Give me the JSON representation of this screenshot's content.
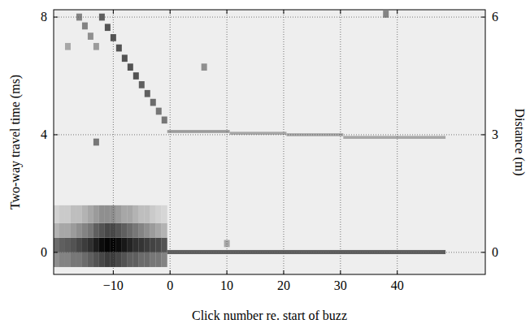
{
  "chart_data": {
    "type": "heatmap",
    "xlabel": "Click number re. start of buzz",
    "ylabel": "Two-way travel time (ms)",
    "y2label": "Distance (m)",
    "xlim": [
      -20.5,
      55.5
    ],
    "ylim": [
      -0.75,
      8.25
    ],
    "y2lim": [
      -0.5625,
      6.1875
    ],
    "xticks": [
      {
        "value": -10,
        "label": "−10"
      },
      0,
      10,
      20,
      30,
      40
    ],
    "yticks": [
      0,
      4,
      8
    ],
    "y2ticks": [
      0,
      3,
      6
    ],
    "grid": true,
    "value_range": [
      0,
      1
    ],
    "cells": [
      [
        -20.5,
        -19.5,
        -0.5,
        0,
        0.4
      ],
      [
        -20.5,
        -19.5,
        0,
        0.5,
        0.55
      ],
      [
        -20.5,
        -19.5,
        0.5,
        1,
        0.25
      ],
      [
        -20.5,
        -19.5,
        1,
        1.6,
        0.12
      ],
      [
        -19.5,
        -18.5,
        -0.5,
        0,
        0.45
      ],
      [
        -19.5,
        -18.5,
        0,
        0.5,
        0.6
      ],
      [
        -19.5,
        -18.5,
        0.5,
        1,
        0.3
      ],
      [
        -19.5,
        -18.5,
        1,
        1.6,
        0.15
      ],
      [
        -18.5,
        -17.5,
        -0.5,
        0,
        0.45
      ],
      [
        -18.5,
        -17.5,
        0,
        0.5,
        0.62
      ],
      [
        -18.5,
        -17.5,
        0.5,
        1,
        0.3
      ],
      [
        -18.5,
        -17.5,
        1,
        1.6,
        0.15
      ],
      [
        -17.5,
        -16.5,
        -0.5,
        0,
        0.5
      ],
      [
        -17.5,
        -16.5,
        0,
        0.5,
        0.65
      ],
      [
        -17.5,
        -16.5,
        0.5,
        1,
        0.35
      ],
      [
        -17.5,
        -16.5,
        1,
        1.6,
        0.2
      ],
      [
        -16.5,
        -15.5,
        -0.5,
        0,
        0.5
      ],
      [
        -16.5,
        -15.5,
        0,
        0.5,
        0.7
      ],
      [
        -16.5,
        -15.5,
        0.5,
        1,
        0.4
      ],
      [
        -16.5,
        -15.5,
        1,
        1.6,
        0.2
      ],
      [
        -15.5,
        -14.5,
        -0.5,
        0,
        0.55
      ],
      [
        -15.5,
        -14.5,
        0,
        0.5,
        0.75
      ],
      [
        -15.5,
        -14.5,
        0.5,
        1,
        0.45
      ],
      [
        -15.5,
        -14.5,
        1,
        1.6,
        0.25
      ],
      [
        -14.5,
        -13.5,
        -0.5,
        0,
        0.6
      ],
      [
        -14.5,
        -13.5,
        0,
        0.5,
        0.8
      ],
      [
        -14.5,
        -13.5,
        0.5,
        1,
        0.5
      ],
      [
        -14.5,
        -13.5,
        1,
        1.6,
        0.3
      ],
      [
        -13.5,
        -12.5,
        -0.5,
        0,
        0.65
      ],
      [
        -13.5,
        -12.5,
        0,
        0.5,
        0.88
      ],
      [
        -13.5,
        -12.5,
        0.5,
        1,
        0.6
      ],
      [
        -13.5,
        -12.5,
        1,
        1.6,
        0.35
      ],
      [
        -12.5,
        -11.5,
        -0.5,
        0,
        0.7
      ],
      [
        -12.5,
        -11.5,
        0,
        0.5,
        0.95
      ],
      [
        -12.5,
        -11.5,
        0.5,
        1,
        0.65
      ],
      [
        -12.5,
        -11.5,
        1,
        1.6,
        0.4
      ],
      [
        -11.5,
        -10.5,
        -0.5,
        0,
        0.75
      ],
      [
        -11.5,
        -10.5,
        0,
        0.5,
        0.98
      ],
      [
        -11.5,
        -10.5,
        0.5,
        1,
        0.7
      ],
      [
        -11.5,
        -10.5,
        1,
        1.6,
        0.4
      ],
      [
        -10.5,
        -9.5,
        -0.5,
        0,
        0.75
      ],
      [
        -10.5,
        -9.5,
        0,
        0.5,
        0.98
      ],
      [
        -10.5,
        -9.5,
        0.5,
        1,
        0.7
      ],
      [
        -10.5,
        -9.5,
        1,
        1.6,
        0.4
      ],
      [
        -9.5,
        -8.5,
        -0.5,
        0,
        0.7
      ],
      [
        -9.5,
        -8.5,
        0,
        0.5,
        0.95
      ],
      [
        -9.5,
        -8.5,
        0.5,
        1,
        0.65
      ],
      [
        -9.5,
        -8.5,
        1,
        1.6,
        0.35
      ],
      [
        -8.5,
        -7.5,
        -0.5,
        0,
        0.65
      ],
      [
        -8.5,
        -7.5,
        0,
        0.5,
        0.9
      ],
      [
        -8.5,
        -7.5,
        0.5,
        1,
        0.6
      ],
      [
        -8.5,
        -7.5,
        1,
        1.6,
        0.3
      ],
      [
        -7.5,
        -6.5,
        -0.5,
        0,
        0.6
      ],
      [
        -7.5,
        -6.5,
        0,
        0.5,
        0.85
      ],
      [
        -7.5,
        -6.5,
        0.5,
        1,
        0.55
      ],
      [
        -7.5,
        -6.5,
        1,
        1.6,
        0.3
      ],
      [
        -6.5,
        -5.5,
        -0.5,
        0,
        0.6
      ],
      [
        -6.5,
        -5.5,
        0,
        0.5,
        0.8
      ],
      [
        -6.5,
        -5.5,
        0.5,
        1,
        0.5
      ],
      [
        -6.5,
        -5.5,
        1,
        1.6,
        0.25
      ],
      [
        -5.5,
        -4.5,
        -0.5,
        0,
        0.55
      ],
      [
        -5.5,
        -4.5,
        0,
        0.5,
        0.78
      ],
      [
        -5.5,
        -4.5,
        0.5,
        1,
        0.45
      ],
      [
        -5.5,
        -4.5,
        1,
        1.6,
        0.2
      ],
      [
        -4.5,
        -3.5,
        -0.5,
        0,
        0.55
      ],
      [
        -4.5,
        -3.5,
        0,
        0.5,
        0.75
      ],
      [
        -4.5,
        -3.5,
        0.5,
        1,
        0.4
      ],
      [
        -4.5,
        -3.5,
        1,
        1.6,
        0.2
      ],
      [
        -3.5,
        -2.5,
        -0.5,
        0,
        0.5
      ],
      [
        -3.5,
        -2.5,
        0,
        0.5,
        0.72
      ],
      [
        -3.5,
        -2.5,
        0.5,
        1,
        0.35
      ],
      [
        -3.5,
        -2.5,
        1,
        1.6,
        0.15
      ],
      [
        -2.5,
        -1.5,
        -0.5,
        0,
        0.5
      ],
      [
        -2.5,
        -1.5,
        0,
        0.5,
        0.7
      ],
      [
        -2.5,
        -1.5,
        0.5,
        1,
        0.3
      ],
      [
        -2.5,
        -1.5,
        1,
        1.6,
        0.12
      ],
      [
        -1.5,
        -0.5,
        -0.5,
        0,
        0.45
      ],
      [
        -1.5,
        -0.5,
        0,
        0.5,
        0.65
      ],
      [
        -1.5,
        -0.5,
        0.5,
        1,
        0.25
      ],
      [
        -1.5,
        -0.5,
        1,
        1.6,
        0.1
      ],
      [
        -12.5,
        -11.5,
        7.88,
        8.12,
        0.6
      ],
      [
        -11.5,
        -10.5,
        7.53,
        7.77,
        0.65
      ],
      [
        -10.5,
        -9.5,
        7.18,
        7.42,
        0.65
      ],
      [
        -9.5,
        -8.5,
        6.83,
        7.07,
        0.65
      ],
      [
        -8.5,
        -7.5,
        6.48,
        6.72,
        0.65
      ],
      [
        -7.5,
        -6.5,
        6.18,
        6.42,
        0.65
      ],
      [
        -6.5,
        -5.5,
        5.88,
        6.12,
        0.65
      ],
      [
        -5.5,
        -4.5,
        5.58,
        5.82,
        0.6
      ],
      [
        -4.5,
        -3.5,
        5.28,
        5.52,
        0.6
      ],
      [
        -3.5,
        -2.5,
        4.98,
        5.22,
        0.55
      ],
      [
        -2.5,
        -1.5,
        4.68,
        4.92,
        0.5
      ],
      [
        -1.5,
        -0.5,
        4.38,
        4.62,
        0.5
      ],
      [
        -16.5,
        -15.5,
        7.88,
        8.12,
        0.45
      ],
      [
        -15.5,
        -14.5,
        7.58,
        7.82,
        0.45
      ],
      [
        -14.5,
        -13.5,
        7.23,
        7.47,
        0.4
      ],
      [
        -13.5,
        -12.5,
        6.88,
        7.12,
        0.35
      ],
      [
        -18.5,
        -17.5,
        6.88,
        7.12,
        0.3
      ],
      [
        -13.5,
        -12.5,
        3.63,
        3.87,
        0.5
      ],
      [
        5.5,
        6.5,
        6.18,
        6.42,
        0.4
      ],
      [
        37.5,
        38.5,
        7.98,
        8.22,
        0.45
      ],
      [
        9.5,
        10.5,
        0.18,
        0.42,
        0.3
      ],
      [
        -0.5,
        48.5,
        -0.06,
        0.08,
        0.6
      ],
      [
        -0.5,
        10.5,
        4.06,
        4.16,
        0.35
      ],
      [
        10.5,
        20.5,
        4.0,
        4.1,
        0.3
      ],
      [
        20.5,
        30.5,
        3.95,
        4.05,
        0.3
      ],
      [
        30.5,
        48.5,
        3.86,
        3.96,
        0.3
      ]
    ]
  }
}
